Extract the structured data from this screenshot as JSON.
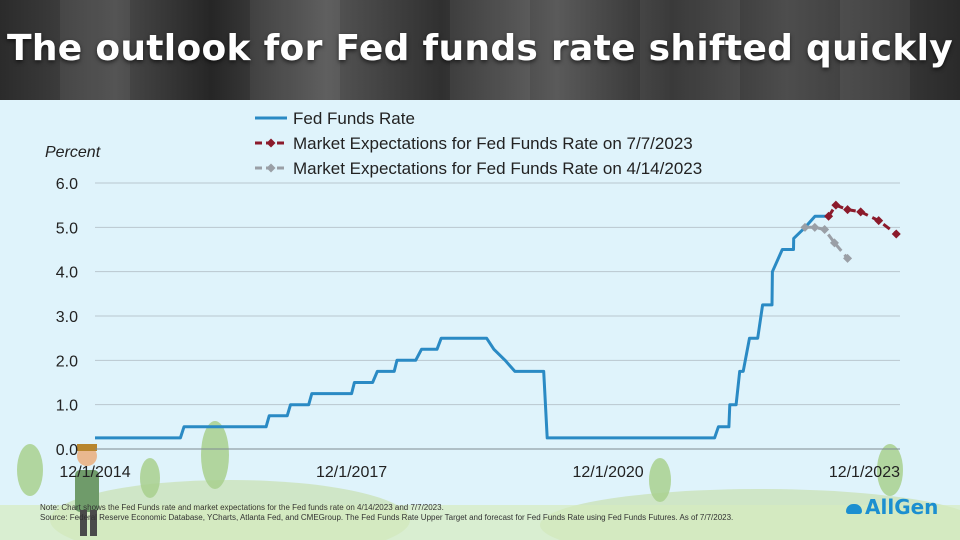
{
  "header": {
    "title": "The outlook for Fed funds rate shifted quickly"
  },
  "brand": {
    "logo_text": "AllGen",
    "accent": "#1c8fd0"
  },
  "note": {
    "line1": "Note: Chart shows  the Fed Funds rate and market expectations for the Fed funds rate on 4/14/2023 and 7/7/2023.",
    "line2": "Source: Federal Reserve Economic Database, YCharts, Atlanta Fed, and CMEGroup. The Fed Funds Rate Upper Target and forecast for Fed Funds Rate using Fed Funds Futures. As of 7/7/2023."
  },
  "chart_data": {
    "type": "line",
    "ylabel": "Percent",
    "ylim": [
      0,
      6
    ],
    "yticks": [
      "0.0",
      "1.0",
      "2.0",
      "3.0",
      "4.0",
      "5.0",
      "6.0"
    ],
    "xlim": [
      "2014-12-01",
      "2024-05-01"
    ],
    "xticks": [
      {
        "date": "2014-12-01",
        "label": "12/1/2014"
      },
      {
        "date": "2017-12-01",
        "label": "12/1/2017"
      },
      {
        "date": "2020-12-01",
        "label": "12/1/2020"
      },
      {
        "date": "2023-12-01",
        "label": "12/1/2023"
      }
    ],
    "grid": "horizontal",
    "legend_position": "top",
    "series": [
      {
        "name": "Fed Funds Rate",
        "color": "#2a8ac4",
        "style": "solid",
        "markers": false,
        "points": [
          [
            "2014-12-01",
            0.25
          ],
          [
            "2015-12-01",
            0.25
          ],
          [
            "2015-12-16",
            0.5
          ],
          [
            "2016-12-01",
            0.5
          ],
          [
            "2016-12-14",
            0.75
          ],
          [
            "2017-03-01",
            0.75
          ],
          [
            "2017-03-15",
            1.0
          ],
          [
            "2017-06-01",
            1.0
          ],
          [
            "2017-06-14",
            1.25
          ],
          [
            "2017-12-01",
            1.25
          ],
          [
            "2017-12-13",
            1.5
          ],
          [
            "2018-03-01",
            1.5
          ],
          [
            "2018-03-21",
            1.75
          ],
          [
            "2018-06-01",
            1.75
          ],
          [
            "2018-06-13",
            2.0
          ],
          [
            "2018-09-01",
            2.0
          ],
          [
            "2018-09-26",
            2.25
          ],
          [
            "2018-12-01",
            2.25
          ],
          [
            "2018-12-19",
            2.5
          ],
          [
            "2019-07-01",
            2.5
          ],
          [
            "2019-08-01",
            2.25
          ],
          [
            "2019-09-18",
            2.0
          ],
          [
            "2019-10-30",
            1.75
          ],
          [
            "2020-03-01",
            1.75
          ],
          [
            "2020-03-16",
            0.25
          ],
          [
            "2022-03-01",
            0.25
          ],
          [
            "2022-03-17",
            0.5
          ],
          [
            "2022-05-01",
            0.5
          ],
          [
            "2022-05-05",
            1.0
          ],
          [
            "2022-06-01",
            1.0
          ],
          [
            "2022-06-16",
            1.75
          ],
          [
            "2022-07-01",
            1.75
          ],
          [
            "2022-07-28",
            2.5
          ],
          [
            "2022-09-01",
            2.5
          ],
          [
            "2022-09-22",
            3.25
          ],
          [
            "2022-11-01",
            3.25
          ],
          [
            "2022-11-03",
            4.0
          ],
          [
            "2022-12-15",
            4.5
          ],
          [
            "2023-02-01",
            4.5
          ],
          [
            "2023-02-02",
            4.75
          ],
          [
            "2023-03-23",
            5.0
          ],
          [
            "2023-05-04",
            5.25
          ],
          [
            "2023-07-07",
            5.25
          ]
        ]
      },
      {
        "name": "Market Expectations for Fed Funds Rate on 7/7/2023",
        "color": "#8b1a2b",
        "style": "dashed",
        "markers": true,
        "points": [
          [
            "2023-07-01",
            5.25
          ],
          [
            "2023-08-01",
            5.5
          ],
          [
            "2023-09-20",
            5.4
          ],
          [
            "2023-11-15",
            5.35
          ],
          [
            "2024-01-31",
            5.15
          ],
          [
            "2024-04-15",
            4.85
          ]
        ]
      },
      {
        "name": "Market Expectations for Fed Funds Rate on 4/14/2023",
        "color": "#9a9fa6",
        "style": "dashed",
        "markers": true,
        "points": [
          [
            "2023-03-22",
            5.0
          ],
          [
            "2023-05-03",
            5.0
          ],
          [
            "2023-06-14",
            4.95
          ],
          [
            "2023-07-26",
            4.65
          ],
          [
            "2023-09-20",
            4.3
          ]
        ]
      }
    ]
  }
}
